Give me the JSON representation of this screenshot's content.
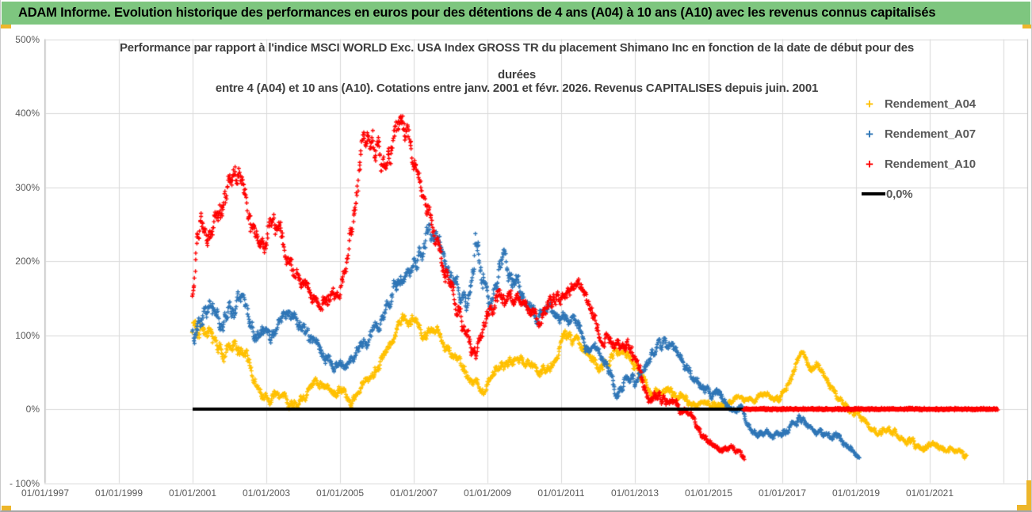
{
  "header": {
    "title": "ADAM Informe. Evolution historique des performances en euros pour des détentions de 4 ans (A04) à 10 ans (A10) avec les revenus connus capitalisés",
    "bg_color": "#7EC67F",
    "accent_color": "#EDB62B"
  },
  "chart_data": {
    "type": "scatter",
    "title_lines": [
      "Performance par rapport à l'indice MSCI WORLD Exc. USA Index GROSS TR  du placement Shimano Inc en fonction de la date de début pour des",
      "durées",
      "entre 4 (A04) et 10 ans (A10). Cotations entre janv. 2001 et févr. 2026. Revenus CAPITALISES depuis juin. 2001"
    ],
    "grid_color": "#d9d9d9",
    "border_color": "#bfbfbf",
    "x_axis": {
      "type": "date",
      "ticks": [
        {
          "label": "01/01/1997",
          "year": 1997
        },
        {
          "label": "01/01/1999",
          "year": 1999
        },
        {
          "label": "01/01/2001",
          "year": 2001
        },
        {
          "label": "01/01/2003",
          "year": 2003
        },
        {
          "label": "01/01/2005",
          "year": 2005
        },
        {
          "label": "01/01/2007",
          "year": 2007
        },
        {
          "label": "01/01/2009",
          "year": 2009
        },
        {
          "label": "01/01/2011",
          "year": 2011
        },
        {
          "label": "01/01/2013",
          "year": 2013
        },
        {
          "label": "01/01/2015",
          "year": 2015
        },
        {
          "label": "01/01/2017",
          "year": 2017
        },
        {
          "label": "01/01/2019",
          "year": 2019
        },
        {
          "label": "01/01/2021",
          "year": 2021
        }
      ],
      "gridline_years": [
        1997,
        1999,
        2001,
        2003,
        2005,
        2007,
        2009,
        2011,
        2013,
        2015,
        2017,
        2019,
        2021,
        2023
      ],
      "range_years": [
        1996.95,
        2023.65
      ]
    },
    "y_axis": {
      "ticks": [
        {
          "label": "500%",
          "value": 500
        },
        {
          "label": "400%",
          "value": 400
        },
        {
          "label": "300%",
          "value": 300
        },
        {
          "label": "200%",
          "value": 200
        },
        {
          "label": "100%",
          "value": 100
        },
        {
          "label": "0%",
          "value": 0
        },
        {
          "label": "- 100%",
          "value": -100
        }
      ],
      "range_pct": [
        -100,
        500
      ]
    },
    "legend": [
      {
        "label": "Rendement_A04",
        "color": "#FFC000",
        "marker": "+"
      },
      {
        "label": "Rendement_A07",
        "color": "#2E75B6",
        "marker": "+"
      },
      {
        "label": "Rendement_A10",
        "color": "#FF0000",
        "marker": "+"
      },
      {
        "label": "0,0%",
        "color": "#000000",
        "marker": "line"
      }
    ],
    "series": [
      {
        "name": "Rendement_A04",
        "color": "#FFC000",
        "seed": 7,
        "cadence_years": 0.012,
        "keypoints": [
          [
            2001.0,
            115,
            28
          ],
          [
            2001.25,
            122,
            18
          ],
          [
            2001.5,
            92,
            16
          ],
          [
            2001.8,
            78,
            16
          ],
          [
            2002.1,
            85,
            16
          ],
          [
            2002.45,
            68,
            14
          ],
          [
            2002.8,
            24,
            12
          ],
          [
            2003.1,
            10,
            9
          ],
          [
            2003.3,
            22,
            9
          ],
          [
            2003.6,
            8,
            8
          ],
          [
            2003.95,
            13,
            9
          ],
          [
            2004.2,
            26,
            10
          ],
          [
            2004.5,
            40,
            10
          ],
          [
            2004.78,
            20,
            9
          ],
          [
            2005.05,
            26,
            10
          ],
          [
            2005.3,
            7,
            7
          ],
          [
            2005.6,
            33,
            10
          ],
          [
            2005.95,
            58,
            13
          ],
          [
            2006.3,
            76,
            13
          ],
          [
            2006.7,
            124,
            11
          ],
          [
            2007.0,
            112,
            13
          ],
          [
            2007.4,
            104,
            13
          ],
          [
            2007.8,
            96,
            13
          ],
          [
            2008.2,
            68,
            13
          ],
          [
            2008.6,
            36,
            13
          ],
          [
            2008.9,
            25,
            9
          ],
          [
            2009.25,
            55,
            13
          ],
          [
            2009.6,
            70,
            12
          ],
          [
            2010.0,
            64,
            11
          ],
          [
            2010.4,
            47,
            10
          ],
          [
            2010.8,
            66,
            11
          ],
          [
            2011.05,
            100,
            12
          ],
          [
            2011.35,
            93,
            11
          ],
          [
            2011.65,
            83,
            11
          ],
          [
            2012.0,
            60,
            11
          ],
          [
            2012.3,
            70,
            11
          ],
          [
            2012.55,
            84,
            11
          ],
          [
            2012.85,
            72,
            11
          ],
          [
            2013.15,
            42,
            11
          ],
          [
            2013.5,
            25,
            9
          ],
          [
            2013.85,
            22,
            9
          ],
          [
            2014.25,
            17,
            9
          ],
          [
            2014.6,
            8,
            7
          ],
          [
            2015.0,
            9,
            7
          ],
          [
            2015.45,
            5,
            7
          ],
          [
            2015.8,
            19,
            7
          ],
          [
            2016.1,
            12,
            7
          ],
          [
            2016.5,
            21,
            7
          ],
          [
            2016.9,
            13,
            7
          ],
          [
            2017.15,
            27,
            7
          ],
          [
            2017.5,
            78,
            7
          ],
          [
            2017.75,
            57,
            9
          ],
          [
            2018.05,
            55,
            9
          ],
          [
            2018.35,
            28,
            9
          ],
          [
            2018.65,
            10,
            7
          ],
          [
            2018.95,
            -6,
            7
          ],
          [
            2019.25,
            -16,
            7
          ],
          [
            2019.6,
            -28,
            7
          ],
          [
            2020.0,
            -30,
            7
          ],
          [
            2020.4,
            -41,
            7
          ],
          [
            2020.8,
            -52,
            7
          ],
          [
            2021.1,
            -47,
            7
          ],
          [
            2021.4,
            -60,
            6
          ],
          [
            2021.7,
            -55,
            6
          ],
          [
            2022.0,
            -64,
            5
          ]
        ]
      },
      {
        "name": "Rendement_A07",
        "color": "#2E75B6",
        "seed": 17,
        "cadence_years": 0.012,
        "keypoints": [
          [
            2001.0,
            100,
            35
          ],
          [
            2001.3,
            138,
            22
          ],
          [
            2001.7,
            128,
            20
          ],
          [
            2002.1,
            132,
            20
          ],
          [
            2002.35,
            148,
            18
          ],
          [
            2002.7,
            108,
            18
          ],
          [
            2003.0,
            92,
            14
          ],
          [
            2003.3,
            108,
            14
          ],
          [
            2003.6,
            128,
            14
          ],
          [
            2003.95,
            103,
            14
          ],
          [
            2004.25,
            84,
            14
          ],
          [
            2004.6,
            70,
            13
          ],
          [
            2004.9,
            60,
            13
          ],
          [
            2005.1,
            48,
            11
          ],
          [
            2005.45,
            80,
            13
          ],
          [
            2005.8,
            104,
            13
          ],
          [
            2006.1,
            122,
            14
          ],
          [
            2006.45,
            172,
            18
          ],
          [
            2006.8,
            193,
            18
          ],
          [
            2007.1,
            208,
            18
          ],
          [
            2007.45,
            248,
            20
          ],
          [
            2007.7,
            224,
            18
          ],
          [
            2008.0,
            184,
            18
          ],
          [
            2008.3,
            150,
            16
          ],
          [
            2008.55,
            158,
            20
          ],
          [
            2008.68,
            232,
            30
          ],
          [
            2008.85,
            172,
            22
          ],
          [
            2009.1,
            150,
            18
          ],
          [
            2009.45,
            212,
            22
          ],
          [
            2009.7,
            178,
            18
          ],
          [
            2010.0,
            148,
            16
          ],
          [
            2010.3,
            128,
            14
          ],
          [
            2010.7,
            134,
            14
          ],
          [
            2011.0,
            114,
            13
          ],
          [
            2011.3,
            120,
            13
          ],
          [
            2011.7,
            88,
            13
          ],
          [
            2012.0,
            78,
            11
          ],
          [
            2012.3,
            54,
            11
          ],
          [
            2012.5,
            14,
            10
          ],
          [
            2012.75,
            38,
            10
          ],
          [
            2013.0,
            40,
            11
          ],
          [
            2013.3,
            64,
            12
          ],
          [
            2013.65,
            88,
            11
          ],
          [
            2014.0,
            78,
            11
          ],
          [
            2014.35,
            58,
            11
          ],
          [
            2014.7,
            38,
            10
          ],
          [
            2015.0,
            25,
            9
          ],
          [
            2015.3,
            14,
            9
          ],
          [
            2015.6,
            -2,
            8
          ],
          [
            2015.9,
            2,
            8
          ],
          [
            2016.2,
            -28,
            7
          ],
          [
            2016.6,
            -35,
            7
          ],
          [
            2017.0,
            -34,
            7
          ],
          [
            2017.45,
            -12,
            7
          ],
          [
            2017.8,
            -28,
            7
          ],
          [
            2018.1,
            -35,
            7
          ],
          [
            2018.5,
            -36,
            7
          ],
          [
            2018.75,
            -52,
            6
          ],
          [
            2019.09,
            -62,
            5
          ]
        ]
      },
      {
        "name": "Rendement_A10",
        "color": "#FF0000",
        "seed": 29,
        "cadence_years": 0.012,
        "keypoints": [
          [
            2001.0,
            158,
            22
          ],
          [
            2001.2,
            252,
            26
          ],
          [
            2001.45,
            232,
            22
          ],
          [
            2001.75,
            268,
            26
          ],
          [
            2002.0,
            298,
            26
          ],
          [
            2002.25,
            318,
            22
          ],
          [
            2002.5,
            272,
            22
          ],
          [
            2002.72,
            230,
            20
          ],
          [
            2002.95,
            225,
            20
          ],
          [
            2003.18,
            258,
            22
          ],
          [
            2003.42,
            232,
            20
          ],
          [
            2003.7,
            188,
            18
          ],
          [
            2004.0,
            174,
            16
          ],
          [
            2004.3,
            155,
            16
          ],
          [
            2004.62,
            148,
            16
          ],
          [
            2004.9,
            152,
            16
          ],
          [
            2005.12,
            185,
            18
          ],
          [
            2005.38,
            255,
            24
          ],
          [
            2005.62,
            342,
            28
          ],
          [
            2005.88,
            358,
            28
          ],
          [
            2006.12,
            330,
            26
          ],
          [
            2006.38,
            368,
            28
          ],
          [
            2006.7,
            393,
            24
          ],
          [
            2006.9,
            358,
            28
          ],
          [
            2007.12,
            300,
            24
          ],
          [
            2007.38,
            262,
            20
          ],
          [
            2007.62,
            224,
            20
          ],
          [
            2007.92,
            188,
            18
          ],
          [
            2008.2,
            130,
            18
          ],
          [
            2008.5,
            94,
            16
          ],
          [
            2008.7,
            70,
            14
          ],
          [
            2008.92,
            110,
            18
          ],
          [
            2009.12,
            148,
            20
          ],
          [
            2009.4,
            154,
            18
          ],
          [
            2009.7,
            148,
            16
          ],
          [
            2010.0,
            140,
            16
          ],
          [
            2010.38,
            120,
            14
          ],
          [
            2010.7,
            148,
            16
          ],
          [
            2011.0,
            150,
            14
          ],
          [
            2011.3,
            164,
            14
          ],
          [
            2011.58,
            168,
            14
          ],
          [
            2011.82,
            128,
            14
          ],
          [
            2012.1,
            95,
            14
          ],
          [
            2012.42,
            85,
            14
          ],
          [
            2012.7,
            95,
            14
          ],
          [
            2012.92,
            78,
            14
          ],
          [
            2013.12,
            44,
            14
          ],
          [
            2013.38,
            14,
            11
          ],
          [
            2013.62,
            17,
            11
          ],
          [
            2013.92,
            5,
            9
          ],
          [
            2014.22,
            0,
            9
          ],
          [
            2014.52,
            -9,
            8
          ],
          [
            2014.82,
            -32,
            9
          ],
          [
            2015.12,
            -48,
            7
          ],
          [
            2015.42,
            -55,
            7
          ],
          [
            2015.62,
            -50,
            7
          ],
          [
            2015.97,
            -67,
            5
          ]
        ]
      }
    ],
    "zero_line": {
      "label": "0,0%",
      "color": "#000000",
      "start_year": 2001.0,
      "end_year": 2015.98,
      "value": 0,
      "thickness": 4
    },
    "red_zero_segment": {
      "color": "#FF0000",
      "start_year": 2015.95,
      "end_year": 2022.85,
      "value": 0,
      "thickness": 6
    }
  }
}
